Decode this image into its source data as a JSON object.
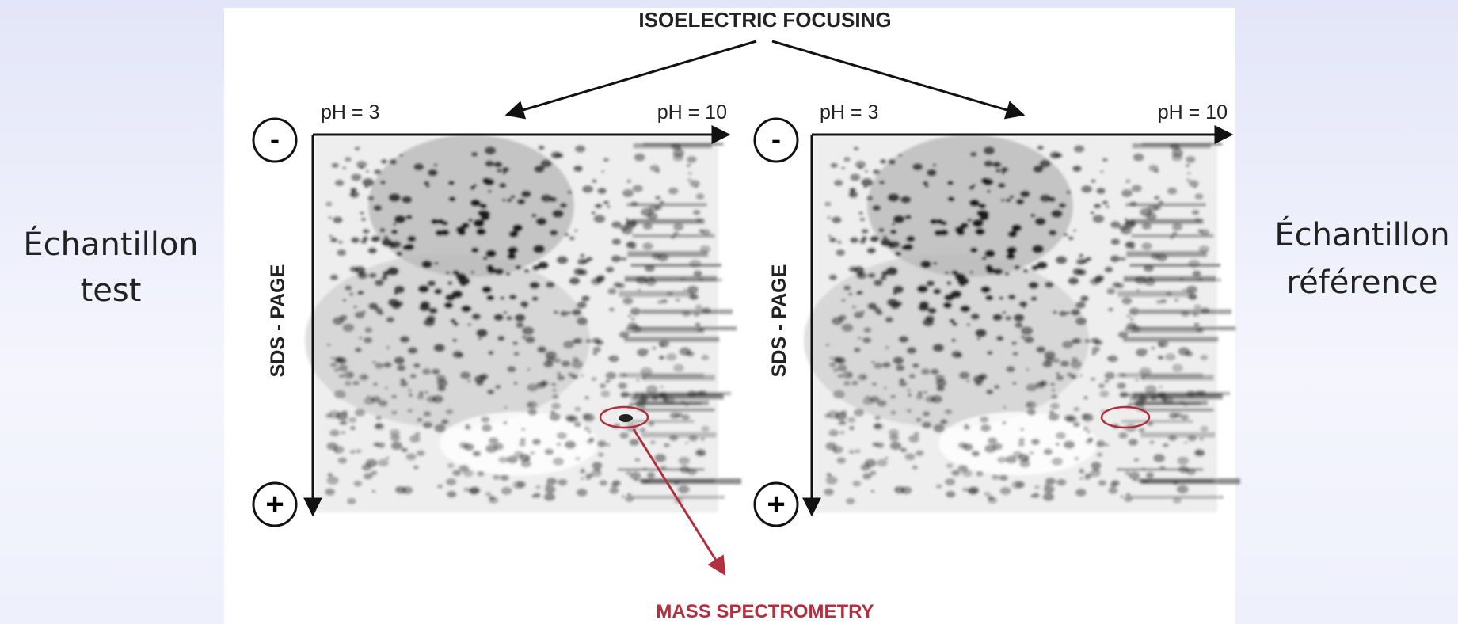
{
  "title": "ISOELECTRIC FOCUSING",
  "gels": [
    {
      "ph_start": "pH = 3",
      "ph_end": "pH = 10",
      "cathode": "-",
      "anode": "+",
      "vertical_label": "SDS - PAGE"
    },
    {
      "ph_start": "pH = 3",
      "ph_end": "pH = 10",
      "cathode": "-",
      "anode": "+",
      "vertical_label": "SDS - PAGE"
    }
  ],
  "samples": [
    {
      "line1": "Échantillon",
      "line2": "test"
    },
    {
      "line1": "Échantillon",
      "line2": "référence"
    }
  ],
  "output": "MASS SPECTROMETRY"
}
